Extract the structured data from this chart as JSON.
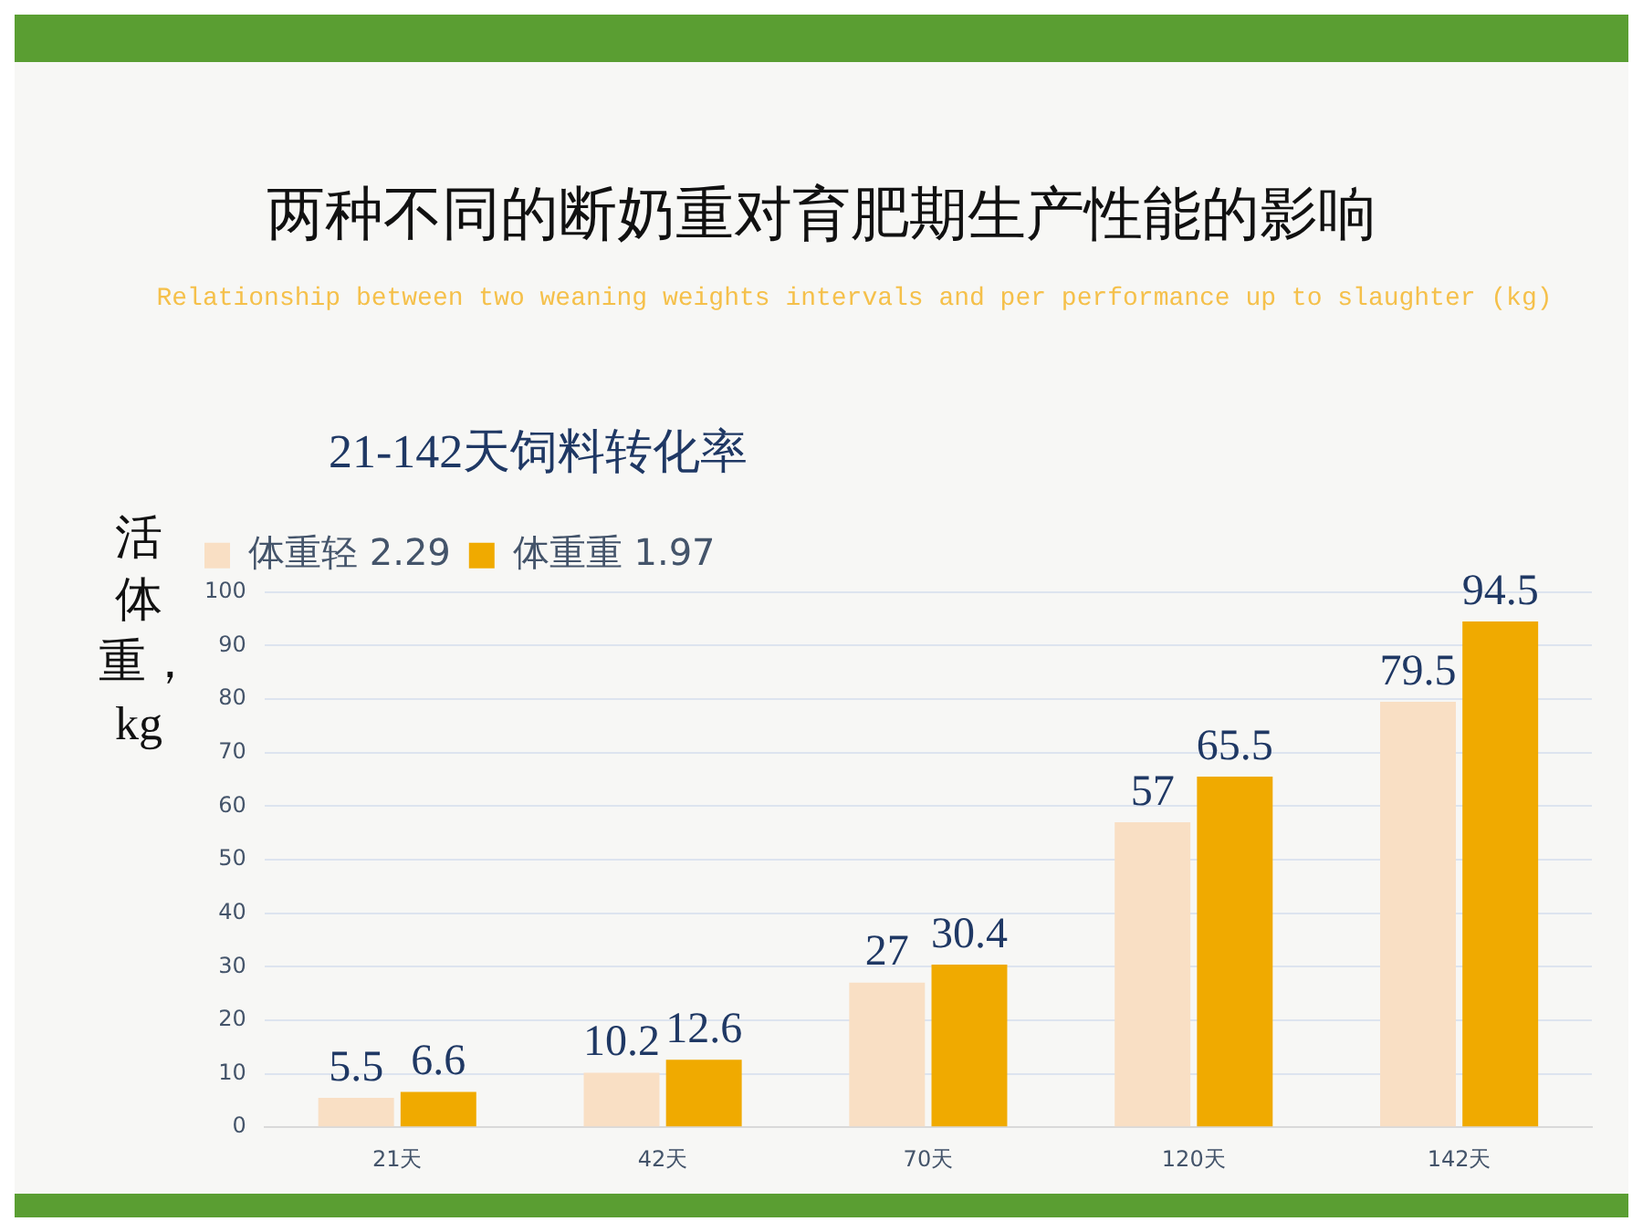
{
  "chart_data": {
    "type": "bar",
    "title": "两种不同的断奶重对育肥期生产性能的影响",
    "subtitle": "Relationship between two weaning weights intervals and per performance up to slaughter (kg)",
    "ylabel": "活体重，kg",
    "legend_title": "21-142天饲料转化率",
    "categories": [
      "21天",
      "42天",
      "70天",
      "120天",
      "142天"
    ],
    "series": [
      {
        "name": "体重轻 2.29",
        "color": "#f9dfc4",
        "values": [
          5.5,
          10.2,
          27,
          57,
          79.5
        ]
      },
      {
        "name": "体重重 1.97",
        "color": "#f0aa00",
        "values": [
          6.6,
          12.6,
          30.4,
          65.5,
          94.5
        ]
      }
    ],
    "ylim": [
      0,
      100
    ],
    "yticks": [
      0,
      10,
      20,
      30,
      40,
      50,
      60,
      70,
      80,
      90,
      100
    ],
    "grid": "y",
    "legend": "top left",
    "data_labels": true
  }
}
